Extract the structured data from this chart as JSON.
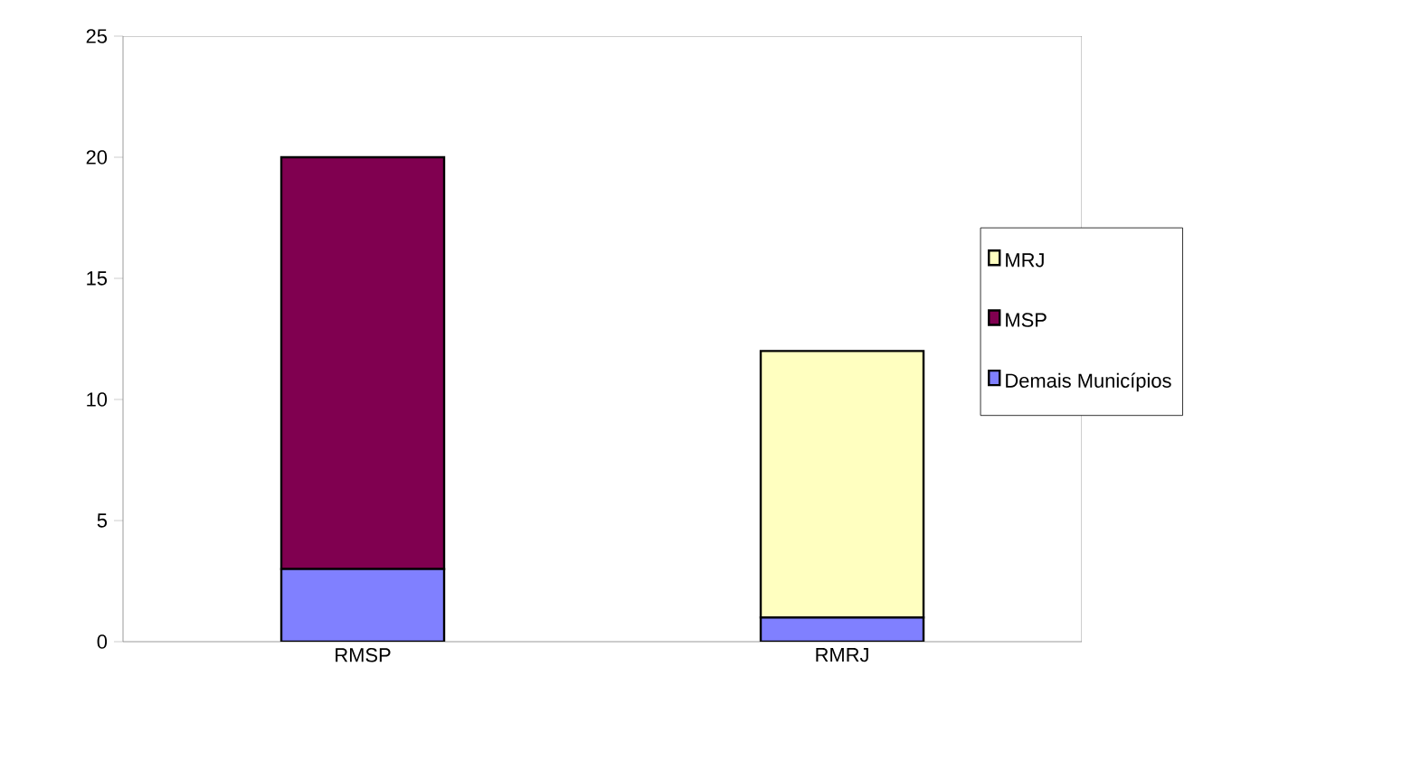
{
  "chart_data": {
    "type": "bar",
    "stacked": true,
    "categories": [
      "RMSP",
      "RMRJ"
    ],
    "series": [
      {
        "name": "Demais Municípios",
        "color": "#8080ff",
        "values": [
          3,
          1
        ]
      },
      {
        "name": "MSP",
        "color": "#800050",
        "values": [
          17,
          0
        ]
      },
      {
        "name": "MRJ",
        "color": "#ffffc0",
        "values": [
          0,
          11
        ]
      }
    ],
    "ylim": [
      0,
      25
    ],
    "yticks": [
      0,
      5,
      10,
      15,
      20,
      25
    ],
    "grid": false,
    "legend": "right"
  }
}
